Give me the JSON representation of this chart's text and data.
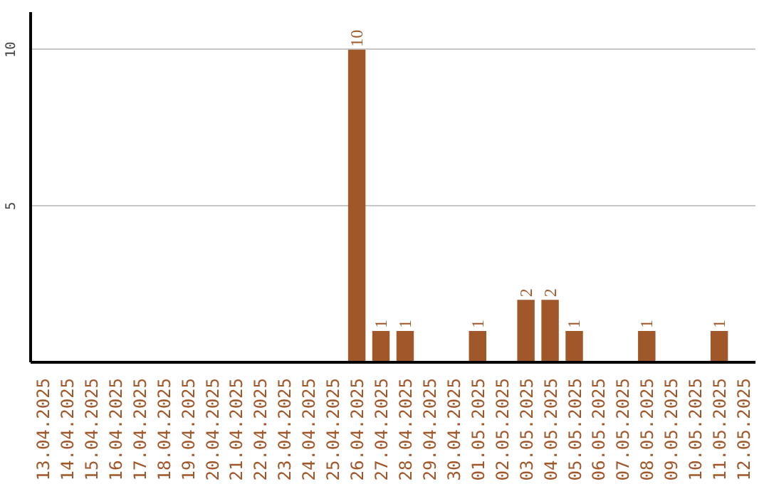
{
  "chart_data": {
    "type": "bar",
    "categories": [
      "13.04.2025",
      "14.04.2025",
      "15.04.2025",
      "16.04.2025",
      "17.04.2025",
      "18.04.2025",
      "19.04.2025",
      "20.04.2025",
      "21.04.2025",
      "22.04.2025",
      "23.04.2025",
      "24.04.2025",
      "25.04.2025",
      "26.04.2025",
      "27.04.2025",
      "28.04.2025",
      "29.04.2025",
      "30.04.2025",
      "01.05.2025",
      "02.05.2025",
      "03.05.2025",
      "04.05.2025",
      "05.05.2025",
      "06.05.2025",
      "07.05.2025",
      "08.05.2025",
      "09.05.2025",
      "10.05.2025",
      "11.05.2025",
      "12.05.2025"
    ],
    "values": [
      0,
      0,
      0,
      0,
      0,
      0,
      0,
      0,
      0,
      0,
      0,
      0,
      0,
      10,
      1,
      1,
      0,
      0,
      1,
      0,
      2,
      2,
      1,
      0,
      0,
      1,
      0,
      0,
      1,
      0
    ],
    "value_labels": [
      null,
      null,
      null,
      null,
      null,
      null,
      null,
      null,
      null,
      null,
      null,
      null,
      null,
      "10",
      "1",
      "1",
      null,
      null,
      "1",
      null,
      "2",
      "2",
      "1",
      null,
      null,
      "1",
      null,
      null,
      "1",
      null
    ],
    "color": "#a0572a",
    "ylim": [
      0,
      11.2
    ],
    "yticks": [
      5,
      10
    ],
    "grid": "y"
  }
}
